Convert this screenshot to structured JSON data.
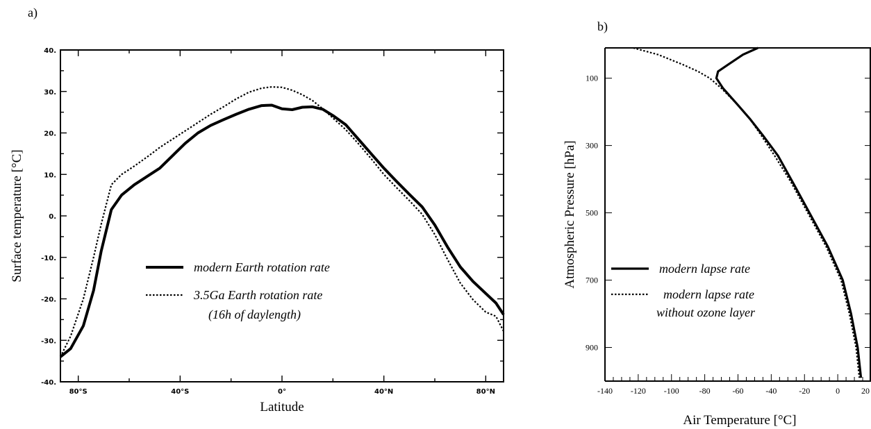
{
  "chart_data": [
    {
      "panel_label": "a)",
      "type": "line",
      "xlabel": "Latitude",
      "ylabel": "Surface temperature [°C]",
      "xlim": [
        -87,
        87
      ],
      "ylim": [
        -40,
        40
      ],
      "x_ticks": [
        {
          "value": -80,
          "label": "80°S"
        },
        {
          "value": -40,
          "label": "40°S"
        },
        {
          "value": 0,
          "label": "0°"
        },
        {
          "value": 40,
          "label": "40°N"
        },
        {
          "value": 80,
          "label": "80°N"
        }
      ],
      "y_ticks": [
        {
          "value": 40,
          "label": "40."
        },
        {
          "value": 30,
          "label": "30."
        },
        {
          "value": 20,
          "label": "20."
        },
        {
          "value": 10,
          "label": "10."
        },
        {
          "value": 0,
          "label": "0."
        },
        {
          "value": -10,
          "label": "-10."
        },
        {
          "value": -20,
          "label": "-20."
        },
        {
          "value": -30,
          "label": "-30."
        },
        {
          "value": -40,
          "label": "-40."
        }
      ],
      "grid": false,
      "legend_position": "lower-center",
      "series": [
        {
          "name": "modern Earth rotation rate",
          "style": "solid",
          "x": [
            -87,
            -83,
            -78,
            -74,
            -71,
            -67,
            -63,
            -58,
            -53,
            -48,
            -43,
            -38,
            -33,
            -28,
            -23,
            -18,
            -13,
            -8,
            -4,
            0,
            4,
            8,
            12,
            16,
            20,
            25,
            30,
            35,
            40,
            45,
            50,
            55,
            60,
            65,
            70,
            75,
            80,
            84,
            87
          ],
          "y": [
            -34,
            -32,
            -26.5,
            -18,
            -8.5,
            1.5,
            5,
            7.5,
            9.5,
            11.5,
            14.5,
            17.5,
            20,
            21.8,
            23.2,
            24.5,
            25.7,
            26.6,
            26.7,
            25.8,
            25.6,
            26.2,
            26.3,
            25.7,
            24.2,
            22,
            18.5,
            15,
            11.5,
            8.3,
            5.2,
            2.2,
            -2.2,
            -7.5,
            -12.3,
            -15.8,
            -18.7,
            -21,
            -23.8
          ]
        },
        {
          "name": "3.5Ga Earth rotation rate\n(16h of daylength)",
          "style": "dotted",
          "x": [
            -87,
            -83,
            -78,
            -74,
            -71,
            -67,
            -63,
            -58,
            -53,
            -48,
            -43,
            -38,
            -33,
            -28,
            -23,
            -18,
            -13,
            -8,
            -4,
            0,
            4,
            8,
            12,
            16,
            20,
            25,
            30,
            35,
            40,
            45,
            50,
            55,
            60,
            65,
            70,
            75,
            80,
            84,
            87
          ],
          "y": [
            -34,
            -29,
            -20,
            -10,
            -2,
            7.5,
            10,
            12,
            14.2,
            16.5,
            18.5,
            20.5,
            22.5,
            24.5,
            26.3,
            28.2,
            29.8,
            30.8,
            31.1,
            31,
            30.3,
            29.2,
            27.8,
            25.8,
            23.6,
            20.8,
            17.4,
            13.8,
            10,
            6.8,
            3.7,
            0.4,
            -4.5,
            -10.5,
            -16.2,
            -20.2,
            -23.2,
            -24.2,
            -27.8
          ]
        }
      ]
    },
    {
      "panel_label": "b)",
      "type": "line",
      "xlabel": "Air Temperature [°C]",
      "ylabel": "Atmospheric Pressure [hPa]",
      "xlim": [
        -140,
        20
      ],
      "ylim": [
        1000,
        10
      ],
      "x_ticks": [
        {
          "value": -140,
          "label": "-140"
        },
        {
          "value": -120,
          "label": "-120"
        },
        {
          "value": -100,
          "label": "-100"
        },
        {
          "value": -80,
          "label": "-80"
        },
        {
          "value": -60,
          "label": "-60"
        },
        {
          "value": -40,
          "label": "-40"
        },
        {
          "value": -20,
          "label": "-20"
        },
        {
          "value": 0,
          "label": "0"
        },
        {
          "value": 20,
          "label": "20"
        }
      ],
      "y_ticks": [
        {
          "value": 100,
          "label": "100"
        },
        {
          "value": 300,
          "label": "300"
        },
        {
          "value": 500,
          "label": "500"
        },
        {
          "value": 700,
          "label": "700"
        },
        {
          "value": 900,
          "label": "900"
        }
      ],
      "grid": false,
      "legend_position": "lower-left",
      "series": [
        {
          "name": "modern lapse rate",
          "style": "solid",
          "x": [
            -48,
            -57,
            -66,
            -72,
            -73,
            -69,
            -60,
            -53,
            -45,
            -36,
            -27,
            -17,
            -6,
            3,
            8,
            12,
            14
          ],
          "y": [
            10,
            30,
            60,
            80,
            100,
            130,
            180,
            220,
            270,
            330,
            410,
            500,
            600,
            700,
            800,
            900,
            990
          ]
        },
        {
          "name": "modern lapse rate\nwithout ozone layer",
          "style": "dotted",
          "x": [
            -123,
            -108,
            -93,
            -84,
            -77,
            -70,
            -60,
            -53,
            -46,
            -38,
            -28,
            -18,
            -7,
            2,
            7,
            11,
            13
          ],
          "y": [
            10,
            30,
            60,
            80,
            100,
            130,
            180,
            220,
            270,
            330,
            410,
            500,
            600,
            700,
            800,
            900,
            990
          ]
        }
      ]
    }
  ]
}
